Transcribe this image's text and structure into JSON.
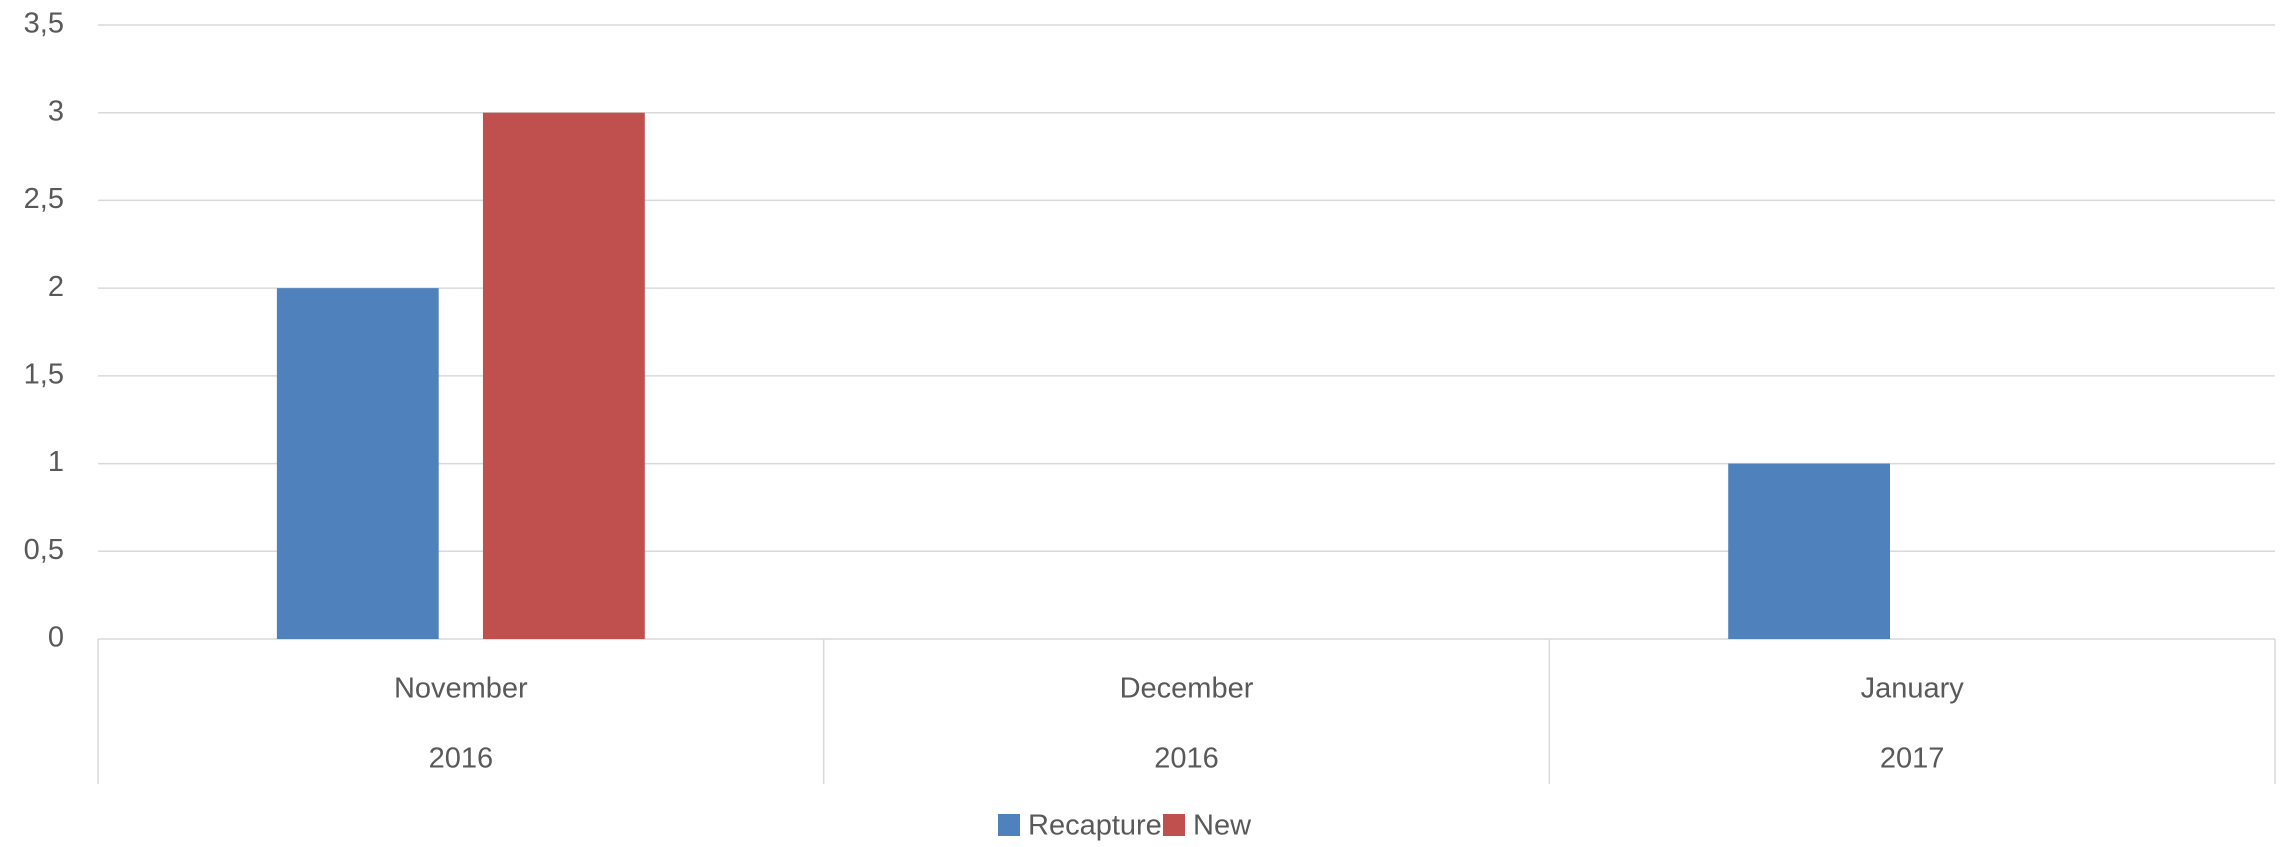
{
  "chart_data": {
    "type": "bar",
    "categories": [
      "November",
      "December",
      "January"
    ],
    "category_years": [
      "2016",
      "2016",
      "2017"
    ],
    "series": [
      {
        "name": "Recapture",
        "color": "#4f81bd",
        "values": [
          2,
          0,
          1
        ]
      },
      {
        "name": "New",
        "color": "#c0504d",
        "values": [
          3,
          0,
          0
        ]
      }
    ],
    "ylim": [
      0,
      3.5
    ],
    "yticks": [
      0,
      {
        "value": 0.5,
        "label": "0,5"
      },
      1,
      {
        "value": 1.5,
        "label": "1,5"
      },
      2,
      {
        "value": 2.5,
        "label": "2,5"
      },
      3,
      {
        "value": 3.5,
        "label": "3,5"
      }
    ],
    "grid": true,
    "legend": "bottom"
  }
}
